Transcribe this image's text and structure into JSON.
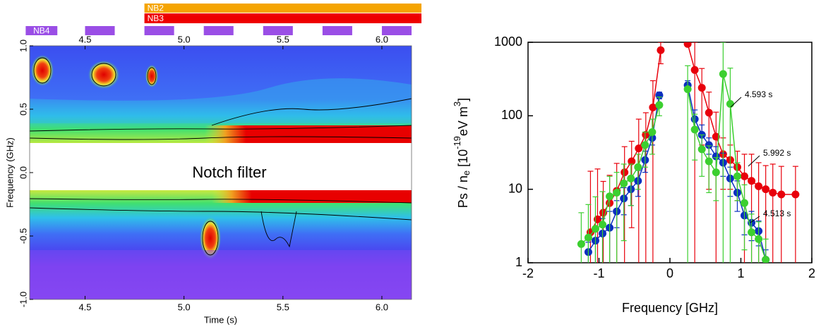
{
  "chart_data": [
    {
      "type": "spectrogram",
      "xlabel": "Time (s)",
      "ylabel": "Frequency (GHz)",
      "xlim": [
        4.22,
        6.15
      ],
      "ylim": [
        -1,
        1
      ],
      "xticks": [
        4.5,
        {
          "value": 5,
          "label": "5.0"
        },
        5.5,
        {
          "value": 6,
          "label": "6.0"
        }
      ],
      "yticks": [
        {
          "value": -1,
          "label": "-1.0"
        },
        -0.5,
        {
          "value": 0,
          "label": "0.0"
        },
        0.5,
        {
          "value": 1,
          "label": "1.0"
        }
      ],
      "annotation": "Notch filter",
      "beams": [
        {
          "name": "NB2",
          "color": "#f5a400",
          "intervals": [
            [
              4.8,
              6.2
            ]
          ]
        },
        {
          "name": "NB3",
          "color": "#ee0000",
          "intervals": [
            [
              4.8,
              6.2
            ]
          ]
        },
        {
          "name": "NB4",
          "color": "#9a4ee6",
          "intervals": [
            [
              4.2,
              4.36
            ],
            [
              4.5,
              4.65
            ],
            [
              4.8,
              4.95
            ],
            [
              5.1,
              5.25
            ],
            [
              5.4,
              5.55
            ],
            [
              5.7,
              5.85
            ],
            [
              6.0,
              6.15
            ]
          ]
        }
      ]
    },
    {
      "type": "line",
      "xlabel": "Frequency [GHz]",
      "ylabel": [
        "Ps / n",
        "e",
        " [10",
        "-19",
        "eV m",
        "3",
        "]"
      ],
      "log_y": true,
      "xlim": [
        -2,
        2
      ],
      "ylim": [
        1,
        1000
      ],
      "xticks": [
        -2,
        -1,
        0,
        1,
        2
      ],
      "yticks": [
        1,
        10,
        100,
        1000
      ],
      "series": [
        {
          "name": "5.992 s",
          "color": "#e8000b",
          "x": [
            -1.12,
            -1.02,
            -0.94,
            -0.85,
            -0.75,
            -0.64,
            -0.54,
            -0.44,
            -0.34,
            -0.24,
            -0.13,
            null,
            0.25,
            0.35,
            0.45,
            0.55,
            0.65,
            0.75,
            0.85,
            0.95,
            1.05,
            1.15,
            1.25,
            1.35,
            1.45,
            1.57,
            1.77
          ],
          "values": [
            2.6,
            3.9,
            4.8,
            6.5,
            9.5,
            17,
            24,
            36,
            55,
            130,
            780,
            null,
            950,
            420,
            240,
            110,
            52,
            30,
            25,
            20,
            15,
            13,
            11,
            10,
            9,
            8.5,
            8.5
          ],
          "errors": [
            15,
            15,
            8,
            9,
            13,
            21,
            21,
            54,
            55,
            170,
            270,
            null,
            60,
            580,
            200,
            100,
            60,
            20,
            15,
            13,
            15,
            17,
            12,
            11,
            13,
            12,
            12
          ]
        },
        {
          "name": "4.513 s",
          "color": "#0a2fc0",
          "x": [
            -1.15,
            -1.05,
            -0.95,
            -0.85,
            -0.75,
            -0.65,
            -0.55,
            -0.45,
            -0.35,
            -0.25,
            -0.15,
            null,
            0.25,
            0.35,
            0.45,
            0.55,
            0.65,
            0.75,
            0.85,
            0.95,
            1.05,
            1.15,
            1.25,
            1.35
          ],
          "values": [
            1.4,
            2,
            2.5,
            3,
            5,
            7.5,
            10,
            13,
            25,
            50,
            190,
            null,
            260,
            90,
            55,
            40,
            28,
            23,
            14,
            9,
            4.4,
            3.5,
            2.7,
            1.1
          ],
          "errors": [
            0.5,
            1,
            1.5,
            2,
            2,
            3,
            4,
            5,
            8,
            10,
            20,
            null,
            40,
            30,
            20,
            10,
            10,
            8,
            6,
            4,
            2,
            1.5,
            1,
            0.4
          ]
        },
        {
          "name": "4.593 s",
          "color": "#3ccf30",
          "x": [
            -1.25,
            -1.15,
            -1.05,
            -0.95,
            -0.85,
            -0.75,
            -0.65,
            -0.55,
            -0.45,
            -0.35,
            -0.25,
            -0.15,
            null,
            0.25,
            0.35,
            0.45,
            0.55,
            0.65,
            0.75,
            0.85,
            0.95,
            1.05,
            1.15,
            1.25,
            1.35
          ],
          "values": [
            1.8,
            2.2,
            2.9,
            3.3,
            8,
            9,
            12,
            14,
            20,
            40,
            60,
            140,
            null,
            230,
            65,
            35,
            24,
            17,
            370,
            145,
            15,
            6.5,
            2.6,
            2.1,
            1.1
          ],
          "errors": [
            3,
            4,
            5,
            6,
            7,
            8,
            10,
            8,
            10,
            20,
            30,
            40,
            null,
            250,
            40,
            20,
            15,
            10,
            700,
            300,
            8,
            5,
            2,
            1.5,
            1
          ]
        }
      ],
      "annotations": [
        "4.593 s",
        "5.992 s",
        "4.513 s"
      ]
    }
  ]
}
